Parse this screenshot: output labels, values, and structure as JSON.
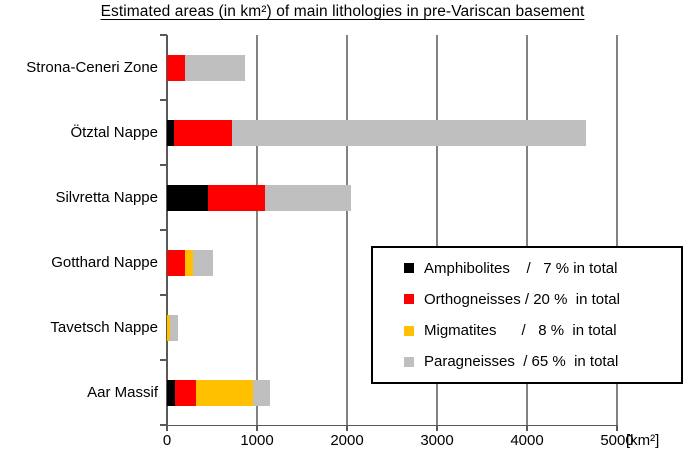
{
  "chart_data": {
    "type": "bar",
    "orientation": "horizontal",
    "stacked": true,
    "title": "Estimated areas (in km²) of main lithologies in pre-Variscan basement",
    "categories": [
      "Strona-Ceneri Zone",
      "Ötztal Nappe",
      "Silvretta Nappe",
      "Gotthard Nappe",
      "Tavetsch Nappe",
      "Aar Massif"
    ],
    "series": [
      {
        "name": "Amphibolites",
        "color": "#000000",
        "percent_of_total": 7,
        "values": [
          0,
          80,
          460,
          0,
          0,
          90
        ]
      },
      {
        "name": "Orthogneisses",
        "color": "#ff0000",
        "percent_of_total": 20,
        "values": [
          200,
          640,
          630,
          200,
          0,
          230
        ]
      },
      {
        "name": "Migmatites",
        "color": "#ffc000",
        "percent_of_total": 8,
        "values": [
          0,
          0,
          0,
          90,
          30,
          640
        ]
      },
      {
        "name": "Paragneisses",
        "color": "#bfbfbf",
        "percent_of_total": 65,
        "values": [
          670,
          3940,
          950,
          220,
          90,
          180
        ]
      }
    ],
    "category_totals": [
      870,
      4660,
      2040,
      510,
      120,
      1140
    ],
    "xlim": [
      0,
      5000
    ],
    "x_ticks": [
      0,
      1000,
      2000,
      3000,
      4000,
      5000
    ],
    "x_unit": "[km²]",
    "grid": true,
    "legend_position": "inside-bottom-right"
  },
  "legend": {
    "rows": [
      {
        "name": "Amphibolites",
        "text": "Amphibolites    /   7 % in total"
      },
      {
        "name": "Orthogneisses",
        "text": "Orthogneisses / 20 %  in total"
      },
      {
        "name": "Migmatites",
        "text": "Migmatites      /   8 %  in total"
      },
      {
        "name": "Paragneisses",
        "text": "Paragneisses  / 65 %  in total"
      }
    ]
  }
}
